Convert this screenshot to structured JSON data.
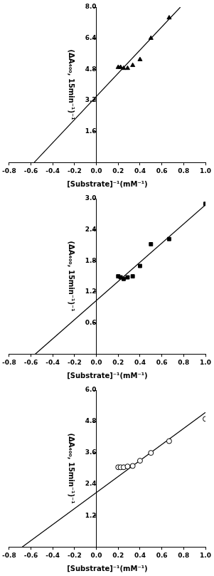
{
  "chart_data": [
    {
      "type": "scatter",
      "x_label": "[Substrate]⁻¹(mM⁻¹)",
      "y_label": "(ΔA₄₀₀, 15min⁻¹)⁻¹",
      "xlim": [
        -0.8,
        1.0
      ],
      "xticks": [
        -0.8,
        -0.6,
        -0.4,
        -0.2,
        {
          "value": 0,
          "label": "0.0"
        },
        0.2,
        0.4,
        0.6,
        0.8,
        {
          "value": 1,
          "label": "1.0"
        }
      ],
      "ylim": [
        0,
        8
      ],
      "yticks": [
        1.6,
        3.2,
        4.8,
        6.4,
        {
          "value": 8,
          "label": "8.0"
        }
      ],
      "grid": false,
      "series": [
        {
          "type": "scatter",
          "marker": "triangle",
          "color": "#000000",
          "x": [
            0.2,
            0.222,
            0.25,
            0.286,
            0.333,
            0.4,
            0.5,
            0.667
          ],
          "values": [
            4.9,
            4.9,
            4.85,
            4.85,
            5.0,
            5.3,
            6.4,
            7.45
          ]
        },
        {
          "type": "line",
          "line_style": "solid",
          "color": "#000000",
          "x": [
            -0.57,
            0.77
          ],
          "values": [
            0,
            8.0
          ]
        }
      ]
    },
    {
      "type": "scatter",
      "x_label": "[Substrate]⁻¹(mM⁻¹)",
      "y_label": "(ΔA₄₀₀, 15min⁻¹)⁻¹",
      "xlim": [
        -0.8,
        1.0
      ],
      "xticks": [
        -0.8,
        -0.6,
        -0.4,
        -0.2,
        {
          "value": 0,
          "label": "0.0"
        },
        0.2,
        0.4,
        0.6,
        0.8,
        {
          "value": 1,
          "label": "1.0"
        }
      ],
      "ylim": [
        0,
        3
      ],
      "yticks": [
        0.6,
        1.2,
        1.8,
        2.4,
        {
          "value": 3,
          "label": "3.0"
        }
      ],
      "grid": false,
      "series": [
        {
          "type": "scatter",
          "marker": "square",
          "color": "#000000",
          "x": [
            0.2,
            0.222,
            0.25,
            0.286,
            0.333,
            0.4,
            0.5,
            0.667,
            1.0
          ],
          "values": [
            1.5,
            1.48,
            1.45,
            1.48,
            1.5,
            1.7,
            2.12,
            2.22,
            2.9
          ]
        },
        {
          "type": "line",
          "line_style": "solid",
          "color": "#000000",
          "x": [
            -0.56,
            1.0
          ],
          "values": [
            0,
            2.88
          ]
        }
      ]
    },
    {
      "type": "scatter",
      "x_label": "[Substrate]⁻¹(mM⁻¹)",
      "y_label": "(ΔA₄₀₀, 15min⁻¹)⁻¹",
      "xlim": [
        -0.8,
        1.0
      ],
      "xticks": [
        -0.8,
        -0.6,
        -0.4,
        -0.2,
        {
          "value": 0,
          "label": "0.0"
        },
        0.2,
        0.4,
        0.6,
        0.8,
        {
          "value": 1,
          "label": "1.0"
        }
      ],
      "ylim": [
        0,
        6
      ],
      "yticks": [
        1.2,
        2.4,
        3.6,
        4.8,
        {
          "value": 6,
          "label": "6.0"
        }
      ],
      "grid": false,
      "series": [
        {
          "type": "scatter",
          "marker": "open_circle",
          "color": "#000000",
          "x": [
            0.2,
            0.222,
            0.25,
            0.286,
            0.333,
            0.4,
            0.5,
            0.667,
            1.0
          ],
          "values": [
            3.05,
            3.05,
            3.05,
            3.08,
            3.1,
            3.3,
            3.6,
            4.05,
            4.9
          ]
        },
        {
          "type": "line",
          "line_style": "solid",
          "color": "#000000",
          "x": [
            -0.68,
            1.0
          ],
          "values": [
            0,
            5.15
          ]
        }
      ]
    }
  ]
}
